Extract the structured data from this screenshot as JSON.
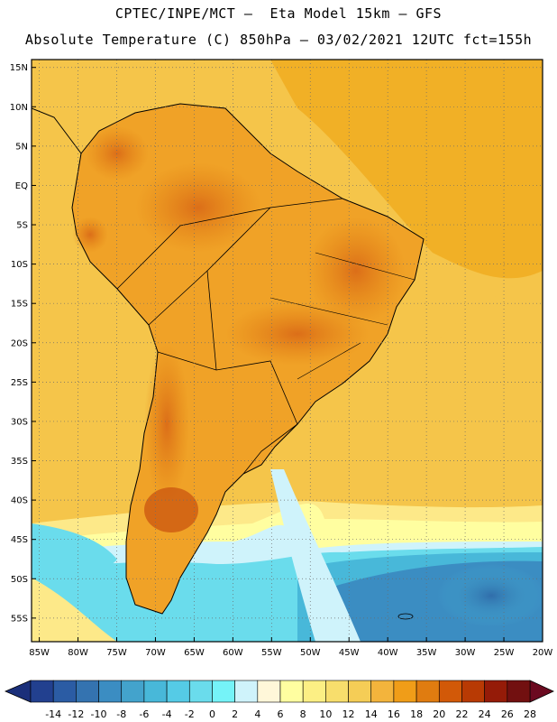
{
  "header": {
    "line1": "CPTEC/INPE/MCT –  Eta Model 15km – GFS",
    "line2": "Absolute Temperature (C) 850hPa – 03/02/2021 12UTC fct=155h"
  },
  "map": {
    "lat_ticks": [
      "15N",
      "10N",
      "5N",
      "EQ",
      "5S",
      "10S",
      "15S",
      "20S",
      "25S",
      "30S",
      "35S",
      "40S",
      "45S",
      "50S",
      "55S"
    ],
    "lat_values": [
      15,
      10,
      5,
      0,
      -5,
      -10,
      -15,
      -20,
      -25,
      -30,
      -35,
      -40,
      -45,
      -50,
      -55
    ],
    "lon_ticks": [
      "85W",
      "80W",
      "75W",
      "70W",
      "65W",
      "60W",
      "55W",
      "50W",
      "45W",
      "40W",
      "35W",
      "30W",
      "25W",
      "20W"
    ],
    "lon_values": [
      -85,
      -80,
      -75,
      -70,
      -65,
      -60,
      -55,
      -50,
      -45,
      -40,
      -35,
      -30,
      -25,
      -20
    ],
    "lon_range": [
      -86,
      -20
    ],
    "lat_range": [
      -58,
      16
    ],
    "grid": "dotted",
    "ocean_color": "#f5c54a"
  },
  "colorbar": {
    "labels": [
      "-14",
      "-12",
      "-10",
      "-8",
      "-6",
      "-4",
      "-2",
      "0",
      "2",
      "4",
      "6",
      "8",
      "10",
      "12",
      "14",
      "16",
      "18",
      "20",
      "22",
      "24",
      "26",
      "28"
    ],
    "low_color": "#1b2f7a",
    "high_color": "#6b0a20",
    "colors": [
      "#22408f",
      "#2b5ca4",
      "#3473b0",
      "#3b8dc2",
      "#43a3cc",
      "#48b8d9",
      "#55cbe6",
      "#6adcec",
      "#75f3f8",
      "#cff3fb",
      "#fff7d9",
      "#fffea0",
      "#fcef84",
      "#f8de6c",
      "#f5cd56",
      "#f3b43c",
      "#f09d18",
      "#e07c10",
      "#d25908",
      "#b83a04",
      "#951b08",
      "#721010"
    ]
  }
}
